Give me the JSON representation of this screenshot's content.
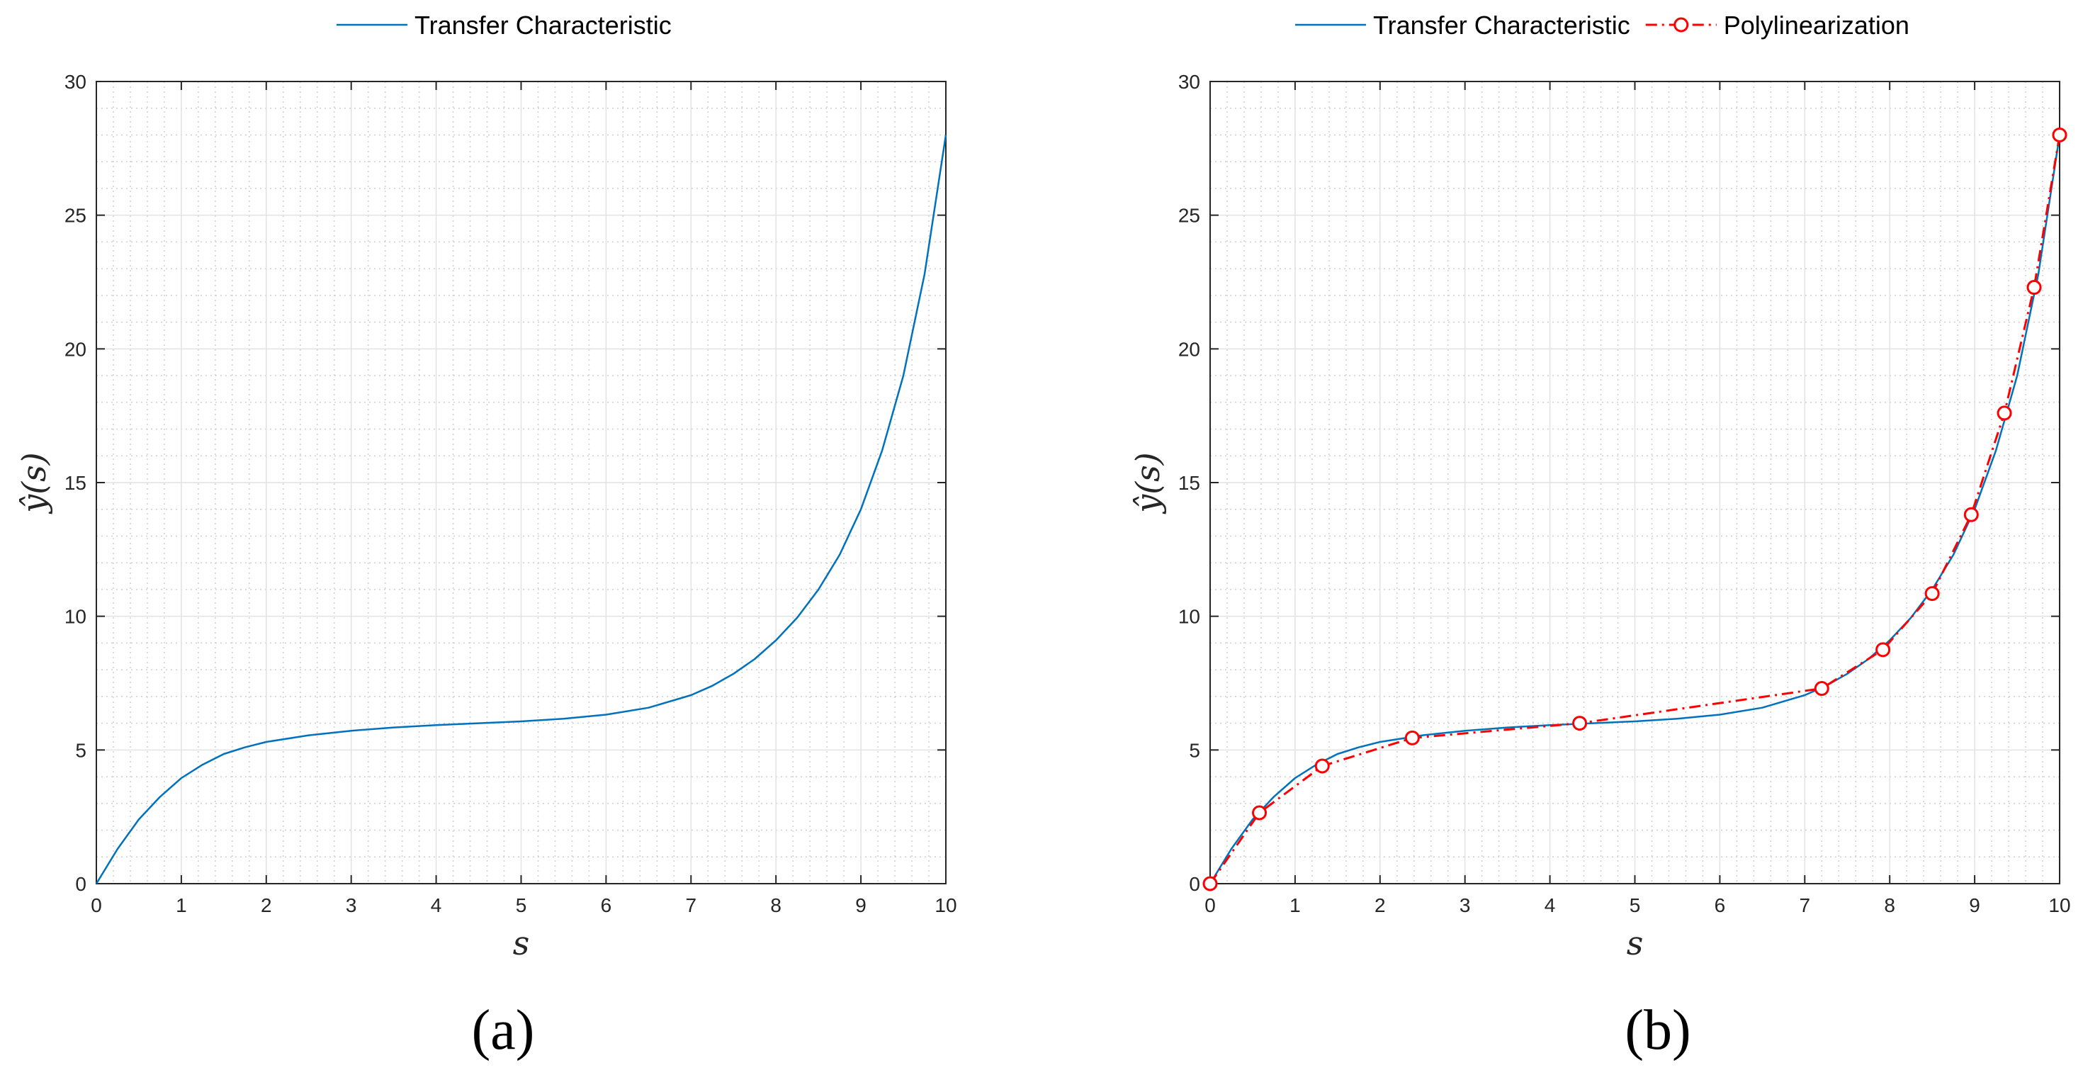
{
  "chart_data": [
    {
      "type": "line",
      "panel_label": "(a)",
      "xlabel": "s",
      "ylabel": "ŷ(s)",
      "xlim": [
        0,
        10
      ],
      "ylim": [
        0,
        30
      ],
      "xticks": [
        0,
        1,
        2,
        3,
        4,
        5,
        6,
        7,
        8,
        9,
        10
      ],
      "yticks": [
        0,
        5,
        10,
        15,
        20,
        25,
        30
      ],
      "grid": true,
      "legend_position": "top",
      "series": [
        {
          "name": "Transfer Characteristic",
          "style": "solid",
          "color": "#0072BD",
          "x": [
            0,
            0.25,
            0.5,
            0.75,
            1,
            1.25,
            1.5,
            1.75,
            2,
            2.5,
            3,
            3.5,
            4,
            4.5,
            5,
            5.5,
            6,
            6.5,
            7,
            7.25,
            7.5,
            7.75,
            8,
            8.25,
            8.5,
            8.75,
            9,
            9.25,
            9.5,
            9.75,
            10
          ],
          "y": [
            0,
            1.3,
            2.4,
            3.25,
            3.95,
            4.45,
            4.85,
            5.1,
            5.3,
            5.55,
            5.72,
            5.84,
            5.93,
            6.0,
            6.07,
            6.17,
            6.32,
            6.58,
            7.05,
            7.4,
            7.85,
            8.4,
            9.1,
            9.95,
            11.0,
            12.3,
            14.0,
            16.2,
            19.0,
            22.8,
            28.0
          ]
        }
      ]
    },
    {
      "type": "line",
      "panel_label": "(b)",
      "xlabel": "s",
      "ylabel": "ŷ(s)",
      "xlim": [
        0,
        10
      ],
      "ylim": [
        0,
        30
      ],
      "xticks": [
        0,
        1,
        2,
        3,
        4,
        5,
        6,
        7,
        8,
        9,
        10
      ],
      "yticks": [
        0,
        5,
        10,
        15,
        20,
        25,
        30
      ],
      "grid": true,
      "legend_position": "top",
      "series": [
        {
          "name": "Transfer Characteristic",
          "style": "solid",
          "color": "#0072BD",
          "x": [
            0,
            0.25,
            0.5,
            0.75,
            1,
            1.25,
            1.5,
            1.75,
            2,
            2.5,
            3,
            3.5,
            4,
            4.5,
            5,
            5.5,
            6,
            6.5,
            7,
            7.25,
            7.5,
            7.75,
            8,
            8.25,
            8.5,
            8.75,
            9,
            9.25,
            9.5,
            9.75,
            10
          ],
          "y": [
            0,
            1.3,
            2.4,
            3.25,
            3.95,
            4.45,
            4.85,
            5.1,
            5.3,
            5.55,
            5.72,
            5.84,
            5.93,
            6.0,
            6.07,
            6.17,
            6.32,
            6.58,
            7.05,
            7.4,
            7.85,
            8.4,
            9.1,
            9.95,
            11.0,
            12.3,
            14.0,
            16.2,
            19.0,
            22.8,
            28.0
          ]
        },
        {
          "name": "Polylinearization",
          "style": "dash-dot with circle markers",
          "color": "#FF0000",
          "x": [
            0,
            0.58,
            1.32,
            2.38,
            4.35,
            7.2,
            7.92,
            8.5,
            8.96,
            9.35,
            9.7,
            10
          ],
          "y": [
            0,
            2.65,
            4.4,
            5.45,
            6.0,
            7.3,
            8.75,
            10.85,
            13.8,
            17.6,
            22.3,
            28.0
          ]
        }
      ]
    }
  ]
}
